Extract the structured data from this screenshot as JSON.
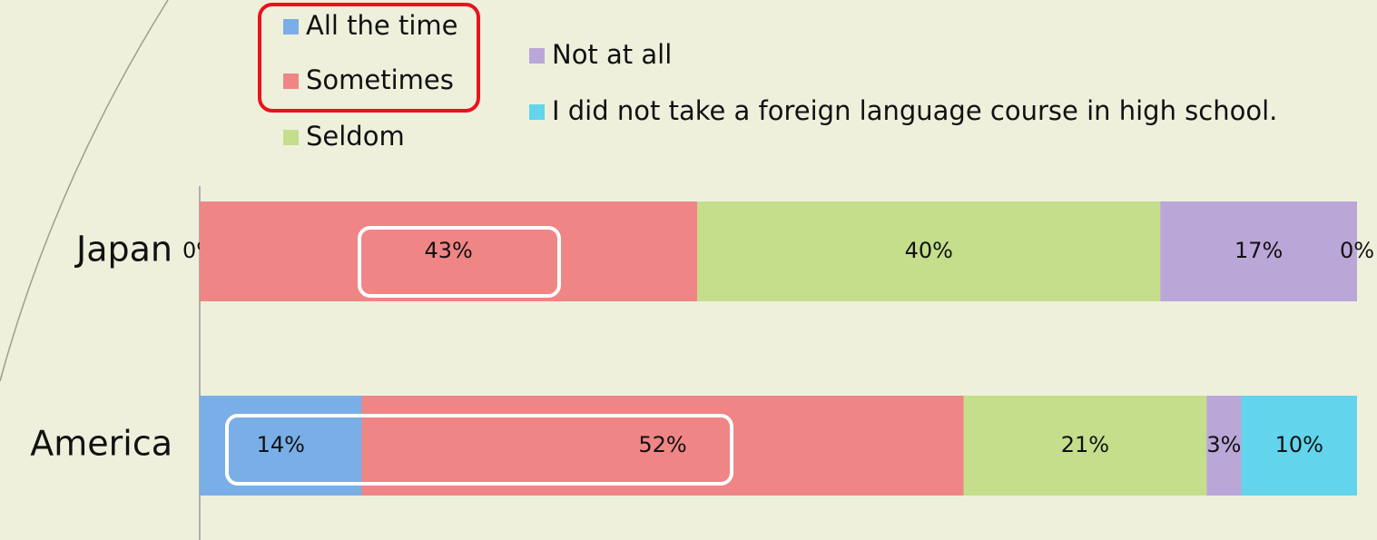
{
  "chart_data": {
    "type": "stacked_bar_horizontal",
    "categories": [
      "Japan",
      "America"
    ],
    "xlim": [
      0,
      100
    ],
    "series": [
      {
        "name": "All the time",
        "color": "#7aaee6",
        "values": [
          0,
          14
        ],
        "value_labels": [
          "0%",
          "14%"
        ]
      },
      {
        "name": "Sometimes",
        "color": "#f08585",
        "values": [
          43,
          52
        ],
        "value_labels": [
          "43%",
          "52%"
        ]
      },
      {
        "name": "Seldom",
        "color": "#c4de8c",
        "values": [
          40,
          21
        ],
        "value_labels": [
          "40%",
          "21%"
        ]
      },
      {
        "name": "Not at all",
        "color": "#bba6d8",
        "values": [
          17,
          3
        ],
        "value_labels": [
          "17%",
          "3%"
        ]
      },
      {
        "name": "I did not take a foreign language course in high school.",
        "color": "#62d4ec",
        "values": [
          0,
          10
        ],
        "value_labels": [
          "0%",
          "10%"
        ]
      }
    ]
  }
}
